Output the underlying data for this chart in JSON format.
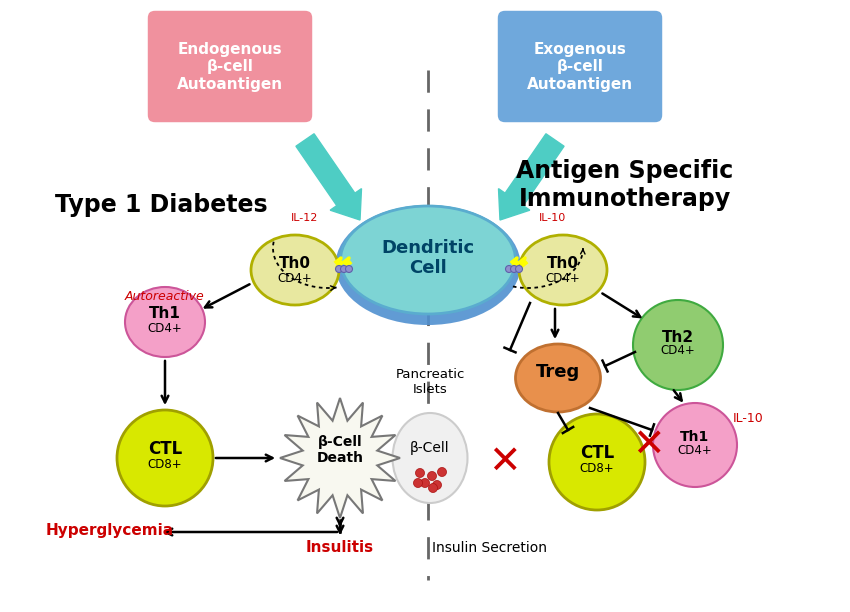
{
  "bg_color": "#ffffff",
  "title_left": "Type 1 Diabetes",
  "title_right": "Antigen Specific\nImmunotherapy",
  "box_endo_text": "Endogenous\nβ-cell\nAutoantigen",
  "box_exo_text": "Exogenous\nβ-cell\nAutoantigen",
  "box_endo_color": "#f0919e",
  "box_exo_color": "#6fa8dc",
  "dendritic_color": "#7dd4d4",
  "dendritic_edge": "#5aaccf",
  "th0_color": "#e8e8a0",
  "th0_edge": "#b0b000",
  "th1_left_color": "#f4a0c8",
  "th1_right_color": "#f4a0c8",
  "th2_color": "#90cc70",
  "treg_color": "#e8904c",
  "ctl_color": "#d8e800",
  "ctl_edge": "#a0a000",
  "bcell_color": "#f0f0f0",
  "teal_arrow": "#4ecdc4",
  "red_color": "#cc0000",
  "black": "#000000",
  "dashed_color": "#666666",
  "il12_color": "#cc0000",
  "il10_color": "#cc0000"
}
